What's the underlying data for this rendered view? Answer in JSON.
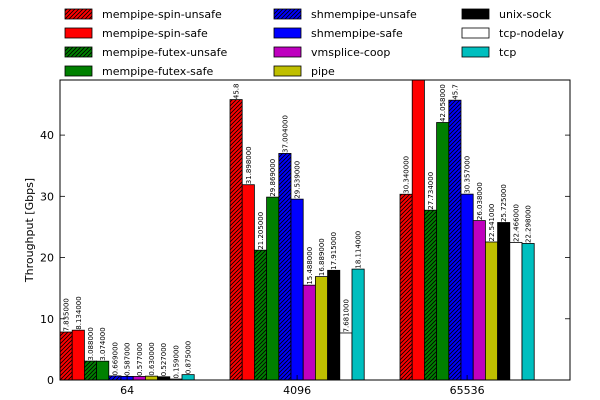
{
  "chart_data": {
    "type": "bar",
    "title": "",
    "xlabel": "",
    "ylabel": "Throughput [Gbps]",
    "ylim": [
      0,
      49
    ],
    "yticks": [
      0,
      10,
      20,
      30,
      40
    ],
    "grid": false,
    "legend_position": "top",
    "categories": [
      "64",
      "4096",
      "65536"
    ],
    "series": [
      {
        "name": "mempipe-spin-unsafe",
        "color": "#ff0000",
        "hatch": true,
        "values": [
          7.835,
          45.8,
          30.34
        ],
        "labels": [
          "7.835000",
          "45.8",
          "30.340000"
        ]
      },
      {
        "name": "mempipe-spin-safe",
        "color": "#ff0000",
        "hatch": false,
        "values": [
          8.134,
          31.898,
          49.0
        ],
        "labels": [
          "8.134000",
          "31.898000",
          ""
        ]
      },
      {
        "name": "mempipe-futex-unsafe",
        "color": "#008000",
        "hatch": true,
        "values": [
          3.088,
          21.205,
          27.734
        ],
        "labels": [
          "3.088000",
          "21.205000",
          "27.734000"
        ]
      },
      {
        "name": "mempipe-futex-safe",
        "color": "#008000",
        "hatch": false,
        "values": [
          3.074,
          29.869,
          42.058
        ],
        "labels": [
          "3.074000",
          "29.869000",
          "42.058000"
        ]
      },
      {
        "name": "shmempipe-unsafe",
        "color": "#0000ff",
        "hatch": true,
        "values": [
          0.669,
          37.004,
          45.7
        ],
        "labels": [
          "0.669000",
          "37.004000",
          "45.7"
        ]
      },
      {
        "name": "shmempipe-safe",
        "color": "#0000ff",
        "hatch": false,
        "values": [
          0.587,
          29.539,
          30.357
        ],
        "labels": [
          "0.587000",
          "29.539000",
          "30.357000"
        ]
      },
      {
        "name": "vmsplice-coop",
        "color": "#bf00bf",
        "hatch": false,
        "values": [
          0.577,
          15.488,
          26.038
        ],
        "labels": [
          "0.577000",
          "15.488000",
          "26.038000"
        ]
      },
      {
        "name": "pipe",
        "color": "#bfbf00",
        "hatch": false,
        "values": [
          0.63,
          16.889,
          22.541
        ],
        "labels": [
          "0.630000",
          "16.889000",
          "22.541000"
        ]
      },
      {
        "name": "unix-sock",
        "color": "#000000",
        "hatch": false,
        "values": [
          0.527,
          17.915,
          25.725
        ],
        "labels": [
          "0.527000",
          "17.915000",
          "25.725000"
        ]
      },
      {
        "name": "tcp-nodelay",
        "color": "#ffffff",
        "hatch": false,
        "values": [
          0.159,
          7.681,
          22.466
        ],
        "labels": [
          "0.159000",
          "7.681000",
          "22.466000"
        ]
      },
      {
        "name": "tcp",
        "color": "#00bfbf",
        "hatch": false,
        "values": [
          0.875,
          18.114,
          22.298
        ],
        "labels": [
          "0.875000",
          "18.114000",
          "22.298000"
        ]
      }
    ]
  }
}
